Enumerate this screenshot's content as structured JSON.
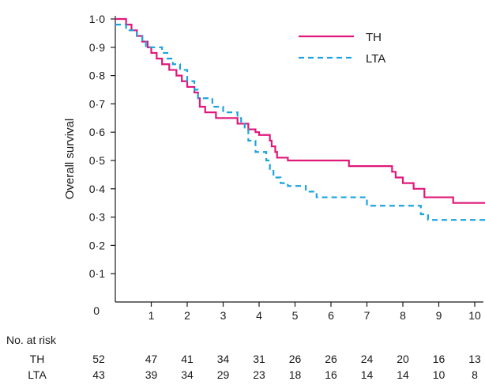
{
  "chart_data": {
    "type": "line",
    "title": "",
    "xlabel": "",
    "ylabel": "Overall survival",
    "xlim": [
      0,
      10.3
    ],
    "ylim": [
      0,
      1.0
    ],
    "x_ticks": [
      "0",
      "1",
      "2",
      "3",
      "4",
      "5",
      "6",
      "7",
      "8",
      "9",
      "10"
    ],
    "y_ticks": [
      "0",
      "0·1",
      "0·2",
      "0·3",
      "0·4",
      "0·5",
      "0·6",
      "0·7",
      "0·8",
      "0·9",
      "1·0"
    ],
    "grid": false,
    "legend_position": "top-right",
    "series": [
      {
        "name": "TH",
        "color": "#e0187a",
        "style": "solid",
        "x": [
          0,
          0.3,
          0.45,
          0.6,
          0.75,
          0.9,
          1.0,
          1.15,
          1.3,
          1.5,
          1.7,
          1.85,
          2.0,
          2.2,
          2.3,
          2.35,
          2.5,
          2.8,
          3.4,
          3.7,
          3.9,
          4.0,
          4.3,
          4.35,
          4.45,
          4.5,
          4.8,
          5.5,
          6.5,
          7.0,
          7.7,
          7.8,
          8.0,
          8.3,
          8.6,
          9.4,
          10.3
        ],
        "y": [
          1.0,
          0.98,
          0.96,
          0.94,
          0.92,
          0.9,
          0.88,
          0.86,
          0.84,
          0.82,
          0.8,
          0.78,
          0.76,
          0.74,
          0.72,
          0.69,
          0.67,
          0.65,
          0.63,
          0.61,
          0.6,
          0.59,
          0.57,
          0.55,
          0.53,
          0.51,
          0.5,
          0.5,
          0.48,
          0.48,
          0.46,
          0.44,
          0.42,
          0.4,
          0.37,
          0.35,
          0.35
        ]
      },
      {
        "name": "LTA",
        "color": "#1aa3e0",
        "style": "dashed",
        "x": [
          0,
          0.3,
          0.6,
          0.75,
          0.85,
          1.0,
          1.3,
          1.45,
          1.6,
          1.8,
          2.0,
          2.2,
          2.3,
          2.45,
          2.7,
          3.0,
          3.4,
          3.5,
          3.6,
          3.7,
          3.9,
          4.2,
          4.3,
          4.4,
          4.6,
          4.8,
          5.3,
          5.6,
          6.5,
          7.0,
          8.1,
          8.5,
          8.7,
          10.3
        ],
        "y": [
          0.98,
          0.96,
          0.94,
          0.92,
          0.9,
          0.9,
          0.88,
          0.86,
          0.84,
          0.82,
          0.78,
          0.75,
          0.72,
          0.72,
          0.69,
          0.67,
          0.65,
          0.63,
          0.61,
          0.57,
          0.53,
          0.5,
          0.47,
          0.44,
          0.42,
          0.41,
          0.39,
          0.37,
          0.37,
          0.34,
          0.34,
          0.31,
          0.29,
          0.29
        ]
      }
    ],
    "risk_table": {
      "title": "No. at risk",
      "times": [
        0,
        1,
        2,
        3,
        4,
        5,
        6,
        7,
        8,
        9,
        10
      ],
      "rows": [
        {
          "label": "TH",
          "values": [
            "52",
            "47",
            "41",
            "34",
            "31",
            "26",
            "26",
            "24",
            "20",
            "16",
            "13"
          ]
        },
        {
          "label": "LTA",
          "values": [
            "43",
            "39",
            "34",
            "29",
            "23",
            "18",
            "16",
            "14",
            "14",
            "10",
            "8"
          ]
        }
      ]
    }
  }
}
